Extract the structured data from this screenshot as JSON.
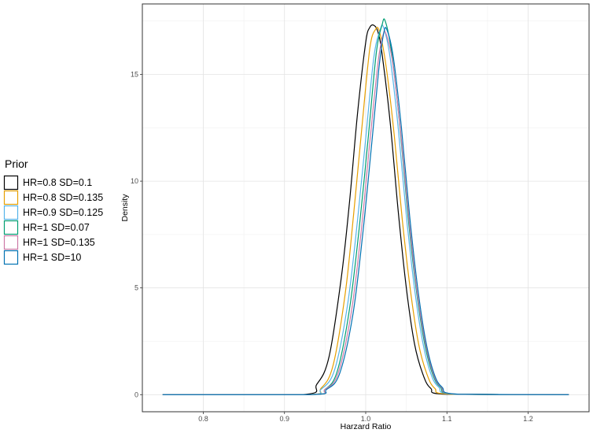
{
  "chart_data": {
    "type": "line",
    "title": "",
    "xlabel": "Harzard Ratio",
    "ylabel": "Density",
    "xlim": [
      0.725,
      1.275
    ],
    "ylim": [
      -0.8,
      18.3
    ],
    "x_ticks": [
      0.8,
      0.9,
      1.0,
      1.1,
      1.2
    ],
    "x_tick_labels": [
      "0.8",
      "0.9",
      "1.0",
      "1.1",
      "1.2"
    ],
    "y_ticks": [
      0,
      5,
      10,
      15
    ],
    "y_tick_labels": [
      "0",
      "5",
      "10",
      "15"
    ],
    "grid": true,
    "legend": {
      "title": "Prior",
      "position": "left"
    },
    "series": [
      {
        "name": "HR=0.8 SD=0.1",
        "color": "#000000",
        "x": [
          0.75,
          0.92,
          0.94,
          0.955,
          0.97,
          0.98,
          0.99,
          1.0,
          1.005,
          1.01,
          1.015,
          1.02,
          1.03,
          1.04,
          1.05,
          1.06,
          1.07,
          1.08,
          1.1,
          1.25
        ],
        "y": [
          0,
          0,
          0.5,
          1.8,
          5.5,
          9.0,
          13.2,
          16.5,
          17.2,
          17.3,
          17.0,
          16.0,
          12.8,
          8.6,
          5.0,
          2.4,
          1.0,
          0.3,
          0.02,
          0
        ]
      },
      {
        "name": "HR=0.8 SD=0.135",
        "color": "#E69F00",
        "x": [
          0.75,
          0.925,
          0.945,
          0.96,
          0.975,
          0.985,
          0.995,
          1.005,
          1.012,
          1.017,
          1.025,
          1.035,
          1.045,
          1.055,
          1.065,
          1.075,
          1.085,
          1.105,
          1.25
        ],
        "y": [
          0,
          0,
          0.3,
          1.4,
          4.8,
          8.4,
          12.4,
          16.2,
          17.1,
          17.0,
          15.4,
          12.2,
          8.2,
          4.9,
          2.4,
          1.0,
          0.3,
          0.02,
          0
        ]
      },
      {
        "name": "HR=0.9 SD=0.125",
        "color": "#56B4E9",
        "x": [
          0.75,
          0.925,
          0.945,
          0.962,
          0.978,
          0.99,
          1.0,
          1.01,
          1.018,
          1.022,
          1.03,
          1.04,
          1.05,
          1.06,
          1.07,
          1.08,
          1.09,
          1.11,
          1.25
        ],
        "y": [
          0,
          0,
          0.25,
          1.2,
          4.3,
          8.2,
          12.0,
          15.8,
          17.1,
          17.2,
          15.8,
          12.5,
          8.4,
          5.0,
          2.5,
          1.0,
          0.35,
          0.02,
          0
        ]
      },
      {
        "name": "HR=1 SD=0.07",
        "color": "#009E73",
        "x": [
          0.75,
          0.93,
          0.95,
          0.965,
          0.98,
          0.992,
          1.003,
          1.013,
          1.02,
          1.024,
          1.032,
          1.042,
          1.052,
          1.062,
          1.072,
          1.082,
          1.092,
          1.112,
          1.25
        ],
        "y": [
          0,
          0,
          0.25,
          1.1,
          4.0,
          7.8,
          12.0,
          16.0,
          17.3,
          17.5,
          16.0,
          12.6,
          8.4,
          5.0,
          2.5,
          1.0,
          0.35,
          0.02,
          0
        ]
      },
      {
        "name": "HR=1 SD=0.135",
        "color": "#CC79A7",
        "x": [
          0.75,
          0.93,
          0.95,
          0.966,
          0.982,
          0.994,
          1.005,
          1.015,
          1.021,
          1.025,
          1.033,
          1.043,
          1.053,
          1.063,
          1.073,
          1.083,
          1.093,
          1.113,
          1.25
        ],
        "y": [
          0,
          0,
          0.25,
          1.0,
          3.8,
          7.5,
          11.8,
          15.5,
          16.8,
          16.9,
          15.6,
          12.3,
          8.3,
          4.9,
          2.5,
          1.0,
          0.35,
          0.02,
          0
        ]
      },
      {
        "name": "HR=1 SD=10",
        "color": "#0072B2",
        "x": [
          0.75,
          0.93,
          0.952,
          0.968,
          0.984,
          0.996,
          1.007,
          1.016,
          1.022,
          1.026,
          1.034,
          1.044,
          1.054,
          1.064,
          1.074,
          1.084,
          1.094,
          1.114,
          1.25
        ],
        "y": [
          0,
          0,
          0.25,
          1.0,
          3.7,
          7.4,
          11.6,
          15.2,
          16.9,
          17.1,
          15.8,
          12.5,
          8.4,
          5.0,
          2.5,
          1.0,
          0.35,
          0.02,
          0
        ]
      }
    ]
  }
}
